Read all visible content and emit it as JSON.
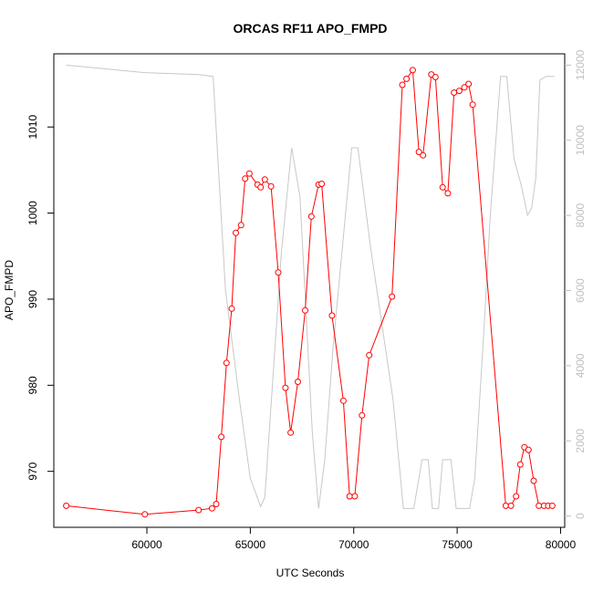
{
  "chart_data": {
    "type": "line",
    "title": "ORCAS RF11 APO_FMPD",
    "xlabel": "UTC Seconds",
    "ylabel": "APO_FMPD",
    "xlim": [
      55500,
      80200
    ],
    "ylim": [
      963.5,
      1018.5
    ],
    "y2lim": [
      -300,
      12300
    ],
    "x_ticks": [
      60000,
      65000,
      70000,
      75000,
      80000
    ],
    "y_ticks": [
      970,
      980,
      990,
      1000,
      1010
    ],
    "y2_ticks": [
      0,
      2000,
      4000,
      6000,
      8000,
      10000,
      12000
    ],
    "grid": false,
    "series": [
      {
        "axis": "left",
        "color": "#ff0000",
        "marker": "open-circle",
        "x": [
          56100,
          59900,
          62500,
          63150,
          63350,
          63600,
          63850,
          64100,
          64300,
          64550,
          64750,
          64950,
          65350,
          65500,
          65700,
          66000,
          66350,
          66700,
          66950,
          67300,
          67650,
          67950,
          68300,
          68450,
          68950,
          69500,
          69800,
          70050,
          70400,
          70750,
          71850,
          72350,
          72550,
          72850,
          73150,
          73350,
          73750,
          73950,
          74300,
          74550,
          74850,
          75100,
          75350,
          75550,
          75750,
          77350,
          77600,
          77850,
          78050,
          78250,
          78450,
          78700,
          78950,
          79200,
          79400,
          79600
        ],
        "y": [
          966.0,
          965.0,
          965.5,
          965.7,
          966.2,
          974.0,
          982.6,
          988.9,
          997.7,
          998.6,
          1004.0,
          1004.6,
          1003.3,
          1003.0,
          1003.9,
          1003.1,
          993.1,
          979.7,
          974.5,
          980.4,
          988.7,
          999.6,
          1003.3,
          1003.4,
          988.1,
          978.2,
          967.1,
          967.1,
          976.5,
          983.5,
          990.3,
          1014.9,
          1015.6,
          1016.6,
          1007.1,
          1006.7,
          1016.1,
          1015.8,
          1003.0,
          1002.3,
          1014.0,
          1014.2,
          1014.6,
          1015.0,
          1012.6,
          966.0,
          966.0,
          967.1,
          970.8,
          972.8,
          972.5,
          968.9,
          966.0,
          966.0,
          966.0,
          966.0
        ]
      },
      {
        "axis": "right",
        "color": "#c8c8c8",
        "marker": "none",
        "x": [
          56100,
          59900,
          62500,
          63200,
          63800,
          64500,
          65000,
          65500,
          65700,
          66500,
          67000,
          67400,
          68000,
          68300,
          68600,
          69000,
          69900,
          70200,
          70800,
          71900,
          72400,
          72900,
          73300,
          73600,
          73800,
          74100,
          74300,
          74700,
          74950,
          75200,
          75600,
          75850,
          76300,
          76600,
          77100,
          77400,
          77750,
          78100,
          78400,
          78600,
          78800,
          79000,
          79300,
          79700
        ],
        "y": [
          12000,
          11800,
          11750,
          11700,
          6000,
          3000,
          1000,
          250,
          500,
          7000,
          9800,
          8500,
          2200,
          200,
          1500,
          4500,
          9800,
          9800,
          7200,
          3100,
          200,
          200,
          1500,
          1500,
          200,
          200,
          1500,
          1500,
          200,
          200,
          200,
          1000,
          5000,
          8000,
          11700,
          11700,
          9500,
          8800,
          8000,
          8200,
          9000,
          11600,
          11700,
          11700
        ]
      }
    ]
  }
}
